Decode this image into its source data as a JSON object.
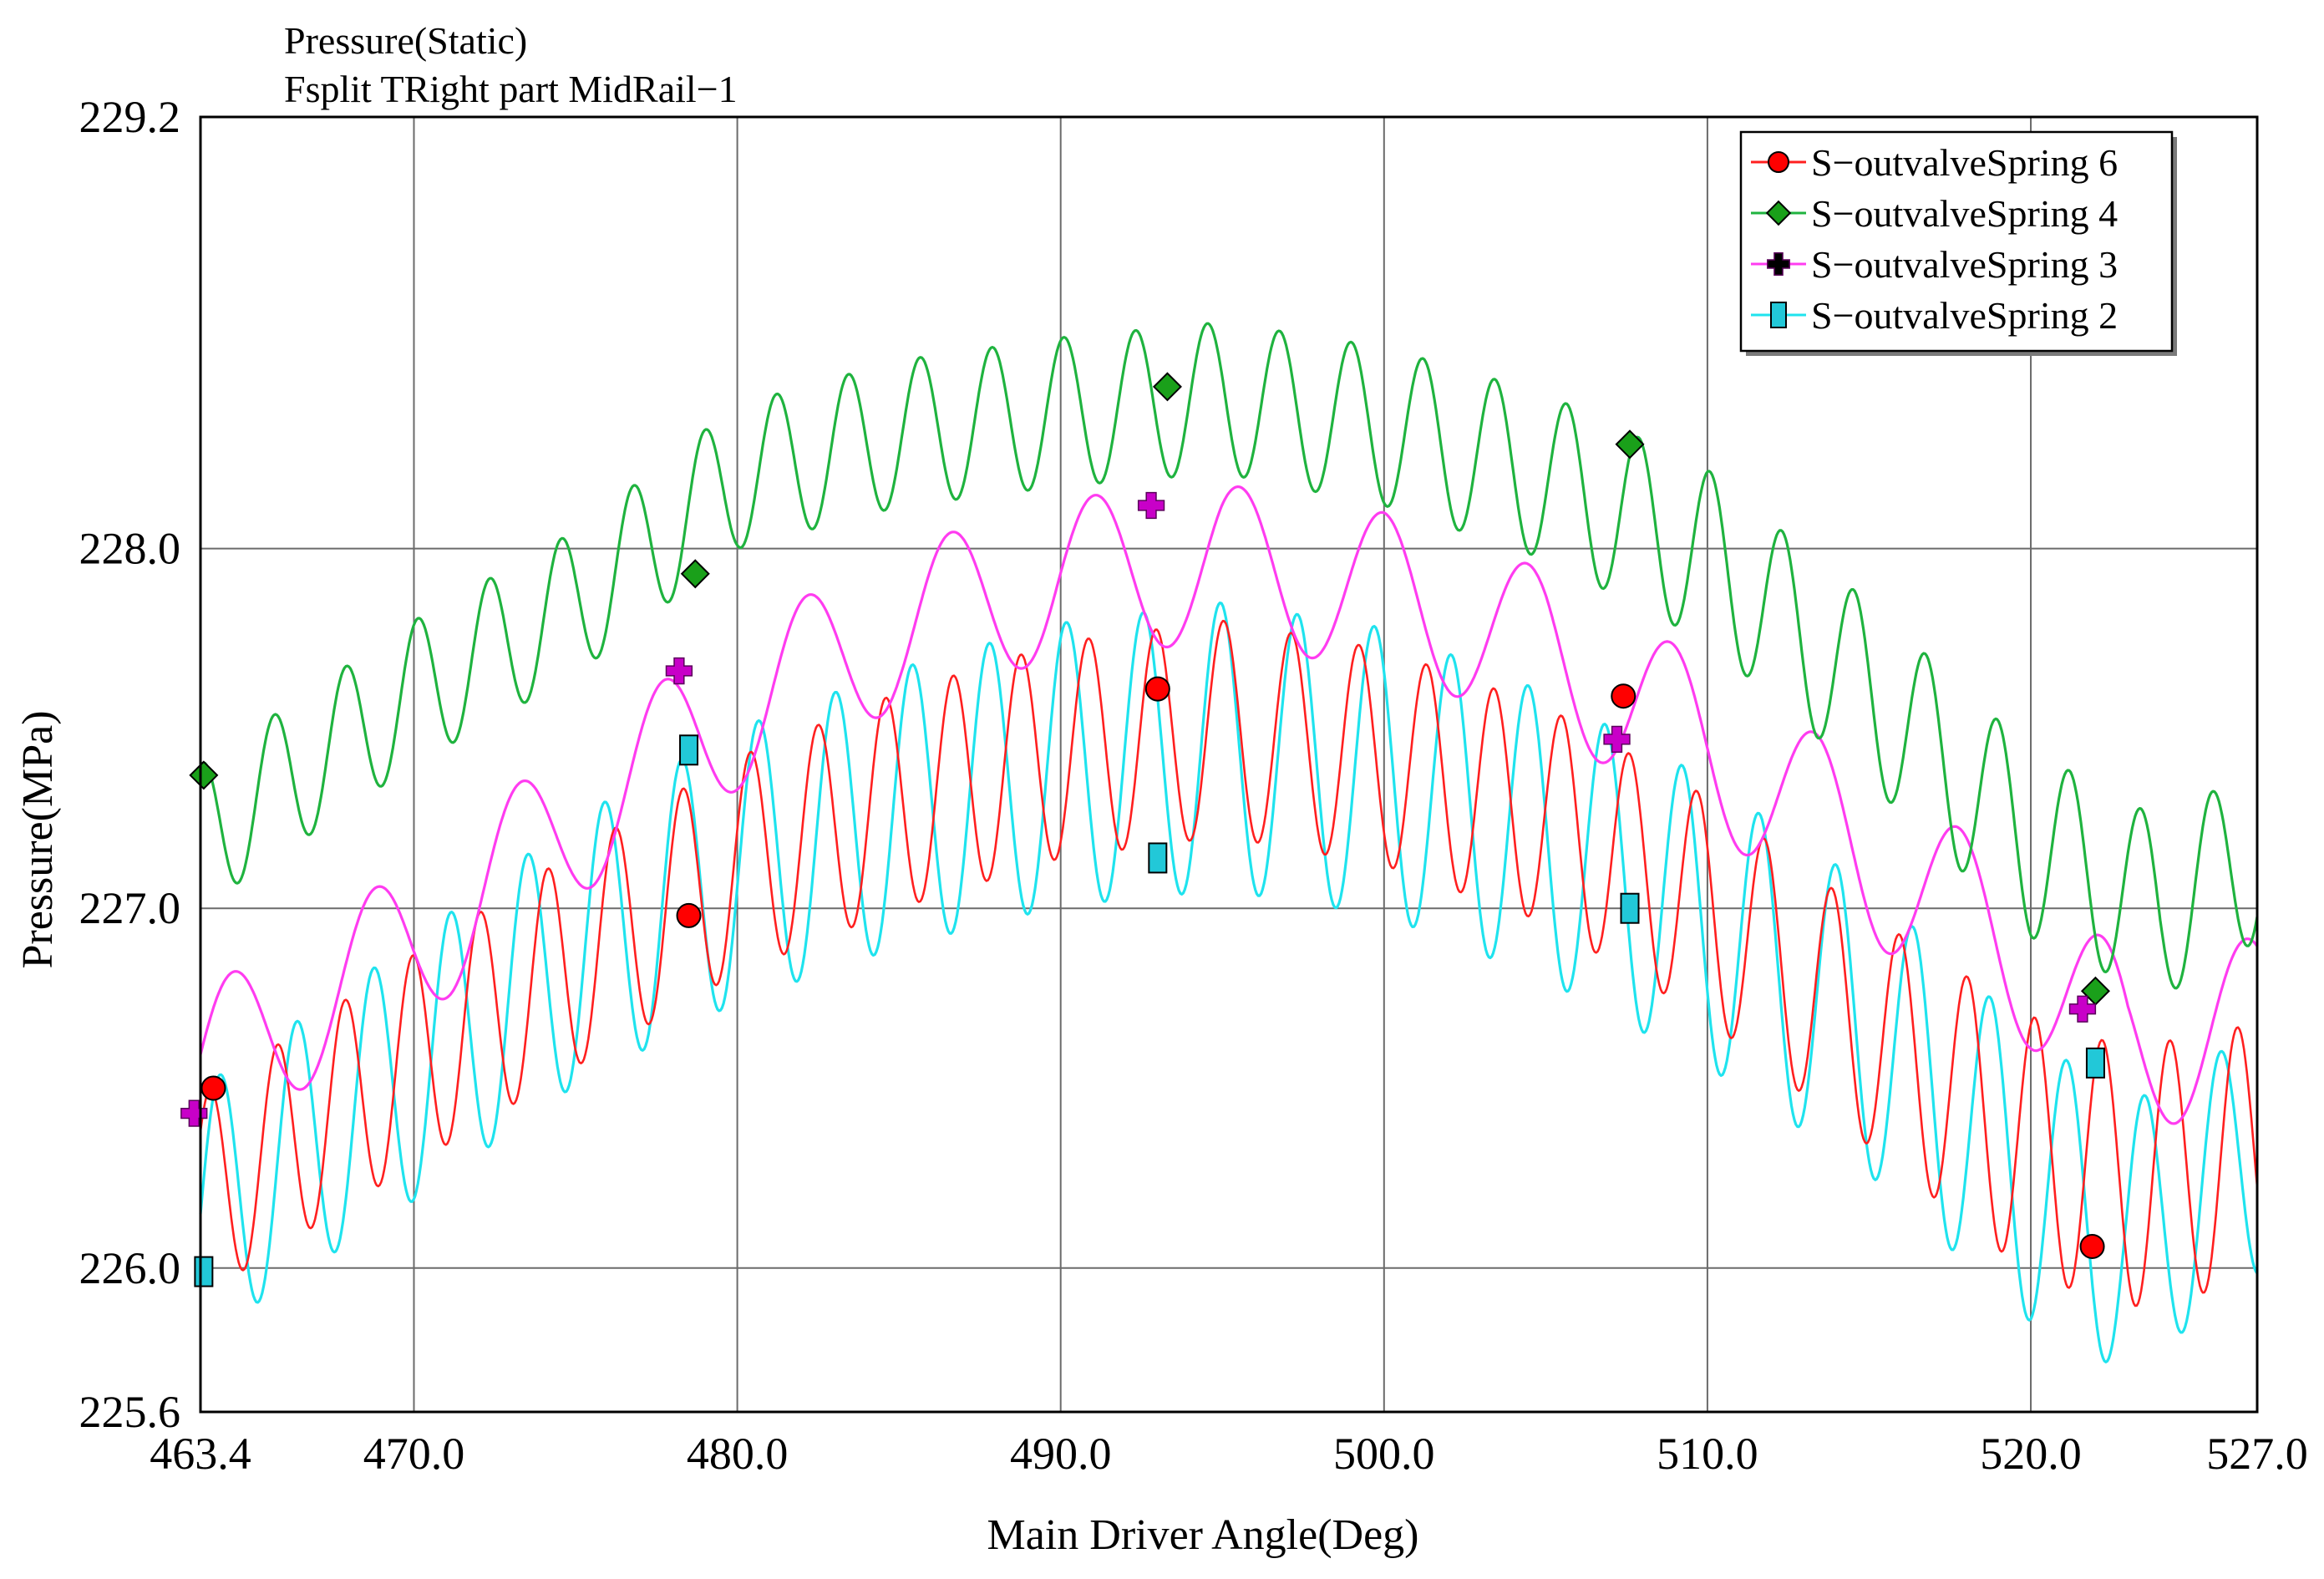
{
  "chart_data": {
    "type": "line",
    "title": "Pressure(Static)",
    "subtitle": "Fsplit TRight part MidRail−1",
    "xlabel": "Main Driver Angle(Deg)",
    "ylabel": "Pressure(MPa)",
    "xlim": [
      463.4,
      527.0
    ],
    "ylim": [
      225.6,
      229.2
    ],
    "x_ticks": [
      463.4,
      470.0,
      480.0,
      490.0,
      500.0,
      510.0,
      520.0,
      527.0
    ],
    "x_tick_labels": [
      "463.4",
      "470.0",
      "480.0",
      "490.0",
      "500.0",
      "510.0",
      "520.0",
      "527.0"
    ],
    "y_ticks": [
      225.6,
      226.0,
      227.0,
      228.0,
      229.2
    ],
    "y_tick_labels": [
      "225.6",
      "226.0",
      "227.0",
      "228.0",
      "229.2"
    ],
    "x_gridlines": [
      470.0,
      480.0,
      490.0,
      500.0,
      510.0,
      520.0
    ],
    "y_gridlines": [
      226.0,
      227.0,
      228.0
    ],
    "grid": true,
    "legend_position": "top-right",
    "series": [
      {
        "name": "S−outvalveSpring 6",
        "color": "#ff1f1f",
        "marker": "circle",
        "marker_color": "#ff0000",
        "period": 2.09,
        "phase": 0.7,
        "trend": [
          [
            463.4,
            226.2
          ],
          [
            470,
            226.58
          ],
          [
            475,
            226.86
          ],
          [
            480,
            227.12
          ],
          [
            485,
            227.3
          ],
          [
            490,
            227.44
          ],
          [
            495,
            227.5
          ],
          [
            500,
            227.42
          ],
          [
            505,
            227.26
          ],
          [
            510,
            227.0
          ],
          [
            515,
            226.66
          ],
          [
            520,
            226.34
          ],
          [
            523,
            226.25
          ],
          [
            527,
            226.32
          ]
        ],
        "amplitude": [
          [
            463.4,
            0.28
          ],
          [
            475,
            0.3
          ],
          [
            490,
            0.3
          ],
          [
            505,
            0.3
          ],
          [
            515,
            0.32
          ],
          [
            520,
            0.36
          ],
          [
            527,
            0.36
          ]
        ],
        "markers": [
          [
            463.8,
            226.5
          ],
          [
            478.5,
            226.98
          ],
          [
            493.0,
            227.61
          ],
          [
            507.4,
            227.59
          ],
          [
            521.9,
            226.06
          ]
        ]
      },
      {
        "name": "S−outvalveSpring 4",
        "color": "#1fb33f",
        "marker": "diamond",
        "marker_color": "#1aa01a",
        "period": 2.22,
        "phase": 1.4,
        "trend": [
          [
            463.4,
            227.2
          ],
          [
            470,
            227.6
          ],
          [
            475,
            227.85
          ],
          [
            480,
            228.2
          ],
          [
            485,
            228.32
          ],
          [
            490,
            228.38
          ],
          [
            495,
            228.42
          ],
          [
            500,
            228.34
          ],
          [
            505,
            228.2
          ],
          [
            510,
            227.98
          ],
          [
            515,
            227.6
          ],
          [
            520,
            227.18
          ],
          [
            524,
            227.0
          ],
          [
            527,
            227.15
          ]
        ],
        "amplitude": [
          [
            463.4,
            0.2
          ],
          [
            480,
            0.2
          ],
          [
            495,
            0.21
          ],
          [
            510,
            0.24
          ],
          [
            520,
            0.26
          ],
          [
            527,
            0.24
          ]
        ],
        "markers": [
          [
            463.5,
            227.37
          ],
          [
            478.7,
            227.93
          ],
          [
            493.3,
            228.45
          ],
          [
            507.6,
            228.29
          ],
          [
            522.0,
            226.77
          ]
        ]
      },
      {
        "name": "S−outvalveSpring 3",
        "color": "#ff3cf0",
        "marker": "plus",
        "marker_color": "#c800c8",
        "period": 4.45,
        "phase": 0.2,
        "trend": [
          [
            463.4,
            226.55
          ],
          [
            470,
            226.9
          ],
          [
            475,
            227.25
          ],
          [
            480,
            227.55
          ],
          [
            485,
            227.78
          ],
          [
            490,
            227.92
          ],
          [
            495,
            227.96
          ],
          [
            500,
            227.88
          ],
          [
            505,
            227.72
          ],
          [
            510,
            227.45
          ],
          [
            515,
            227.15
          ],
          [
            520,
            226.85
          ],
          [
            523,
            226.62
          ],
          [
            527,
            226.68
          ]
        ],
        "amplitude": [
          [
            463.4,
            0.22
          ],
          [
            480,
            0.22
          ],
          [
            495,
            0.22
          ],
          [
            505,
            0.22
          ],
          [
            515,
            0.24
          ],
          [
            527,
            0.24
          ]
        ],
        "markers": [
          [
            463.2,
            226.43
          ],
          [
            478.2,
            227.66
          ],
          [
            492.8,
            228.12
          ],
          [
            507.2,
            227.47
          ],
          [
            521.6,
            226.72
          ]
        ]
      },
      {
        "name": "S−outvalveSpring 2",
        "color": "#1fe3ee",
        "marker": "square",
        "marker_color": "#22c8d8",
        "period": 2.38,
        "phase": 0.0,
        "trend": [
          [
            463.4,
            226.15
          ],
          [
            470,
            226.55
          ],
          [
            475,
            226.88
          ],
          [
            480,
            227.12
          ],
          [
            485,
            227.28
          ],
          [
            490,
            227.4
          ],
          [
            495,
            227.45
          ],
          [
            500,
            227.38
          ],
          [
            505,
            227.2
          ],
          [
            510,
            226.96
          ],
          [
            515,
            226.66
          ],
          [
            520,
            226.25
          ],
          [
            523,
            226.08
          ],
          [
            527,
            226.32
          ]
        ],
        "amplitude": [
          [
            463.4,
            0.35
          ],
          [
            480,
            0.38
          ],
          [
            495,
            0.4
          ],
          [
            510,
            0.4
          ],
          [
            520,
            0.4
          ],
          [
            527,
            0.34
          ]
        ],
        "markers": [
          [
            463.5,
            225.99
          ],
          [
            478.5,
            227.44
          ],
          [
            493.0,
            227.14
          ],
          [
            507.6,
            227.0
          ],
          [
            522.0,
            226.57
          ]
        ]
      }
    ]
  }
}
